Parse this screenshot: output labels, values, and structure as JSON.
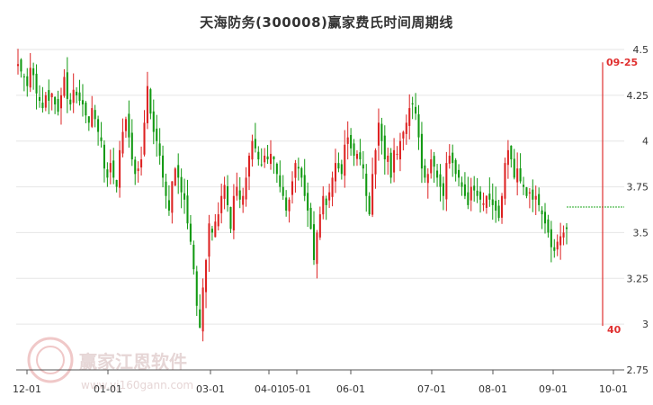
{
  "title": "天海防务(300008)赢家费氏时间周期线",
  "watermark": {
    "name": "赢家江恩软件",
    "url": "www.yj160gann.com"
  },
  "chart_data": {
    "type": "candlestick",
    "title": "天海防务(300008)赢家费氏时间周期线",
    "x_ticks": [
      "12-01",
      "01-01",
      "03-01",
      "04-01",
      "05-01",
      "06-01",
      "07-01",
      "08-01",
      "09-01",
      "10-01"
    ],
    "y_ticks": [
      "2.75",
      "3",
      "3.25",
      "3.5",
      "3.75",
      "4",
      "4.25",
      "4.5"
    ],
    "ylim": [
      2.75,
      4.5
    ],
    "grid": true,
    "colors": {
      "up": "#dd2222",
      "down": "#119911",
      "cycle_line": "#e03030",
      "level_line": "#22aa22"
    },
    "closes": [
      4.42,
      4.38,
      4.35,
      4.3,
      4.4,
      4.36,
      4.26,
      4.22,
      4.18,
      4.25,
      4.22,
      4.26,
      4.2,
      4.16,
      4.25,
      4.35,
      4.23,
      4.2,
      4.28,
      4.25,
      4.22,
      4.2,
      4.14,
      4.1,
      4.18,
      4.12,
      4.05,
      4.0,
      3.85,
      3.8,
      3.88,
      3.8,
      3.75,
      3.95,
      4.05,
      4.12,
      4.02,
      3.9,
      3.82,
      3.85,
      3.9,
      4.1,
      4.3,
      4.15,
      4.05,
      4.0,
      3.92,
      3.8,
      3.7,
      3.62,
      3.78,
      3.85,
      3.8,
      3.72,
      3.68,
      3.55,
      3.45,
      3.3,
      3.1,
      2.98,
      3.2,
      3.35,
      3.55,
      3.5,
      3.56,
      3.6,
      3.7,
      3.76,
      3.65,
      3.52,
      3.7,
      3.75,
      3.68,
      3.7,
      3.8,
      3.92,
      4.0,
      3.96,
      3.9,
      3.87,
      3.92,
      3.9,
      3.93,
      3.9,
      3.82,
      3.75,
      3.7,
      3.62,
      3.68,
      3.78,
      3.88,
      3.85,
      3.8,
      3.7,
      3.62,
      3.52,
      3.35,
      3.5,
      3.6,
      3.7,
      3.65,
      3.72,
      3.8,
      3.88,
      3.85,
      3.82,
      3.98,
      4.02,
      3.96,
      3.92,
      3.93,
      3.9,
      3.85,
      3.7,
      3.6,
      3.82,
      3.95,
      4.1,
      4.0,
      3.9,
      3.92,
      3.8,
      3.95,
      3.93,
      4.0,
      4.05,
      4.1,
      4.18,
      4.2,
      4.15,
      4.02,
      3.85,
      3.8,
      3.82,
      3.9,
      3.86,
      3.8,
      3.75,
      3.7,
      3.88,
      3.92,
      3.88,
      3.82,
      3.8,
      3.75,
      3.7,
      3.65,
      3.75,
      3.73,
      3.7,
      3.68,
      3.66,
      3.7,
      3.68,
      3.65,
      3.62,
      3.58,
      3.7,
      3.88,
      3.95,
      3.9,
      3.8,
      3.85,
      3.78,
      3.75,
      3.7,
      3.72,
      3.68,
      3.7,
      3.65,
      3.6,
      3.55,
      3.5,
      3.42,
      3.4,
      3.45,
      3.48,
      3.5,
      3.52
    ],
    "cycle_line": {
      "date": "09-25",
      "label": "40"
    },
    "level_line_value": 3.64
  }
}
